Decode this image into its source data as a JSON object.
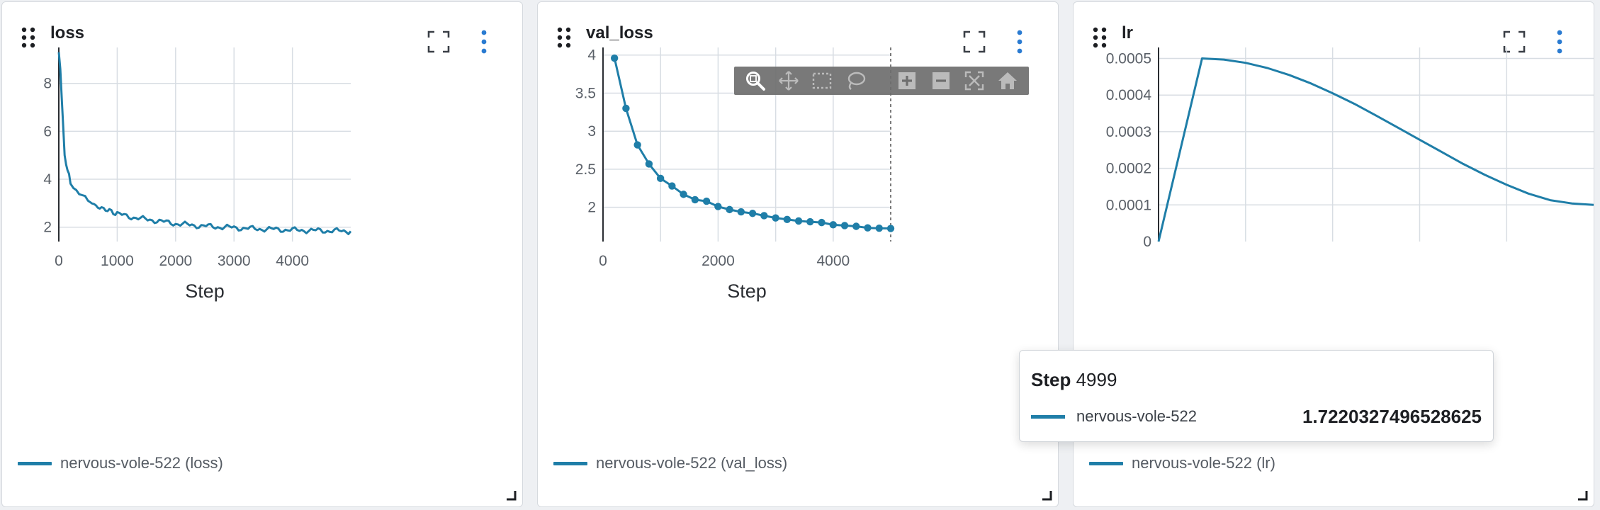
{
  "colors": {
    "series": "#1f7ea8",
    "grid": "#d8dde3",
    "axis": "#2a2d32",
    "accent": "#2a7bd1"
  },
  "panels": [
    {
      "title": "loss",
      "legend": "nervous-vole-522 (loss)"
    },
    {
      "title": "val_loss",
      "legend": "nervous-vole-522 (val_loss)"
    },
    {
      "title": "lr",
      "legend": "nervous-vole-522 (lr)"
    }
  ],
  "toolbar": {
    "buttons": [
      "zoom-icon",
      "pan-icon",
      "box-select-icon",
      "lasso-select-icon",
      "zoom-in-icon",
      "zoom-out-icon",
      "autoscale-icon",
      "reset-axes-icon"
    ]
  },
  "tooltip": {
    "step_label": "Step",
    "step_value": "4999",
    "series_name": "nervous-vole-522",
    "value": "1.7220327496528625"
  },
  "chart_data": [
    {
      "type": "line",
      "title": "loss",
      "xlabel": "Step",
      "ylabel": "",
      "xlim": [
        0,
        4999
      ],
      "ylim": [
        1.4,
        9.5
      ],
      "xticks": [
        0,
        1000,
        2000,
        3000,
        4000
      ],
      "yticks": [
        2,
        4,
        6,
        8
      ],
      "grid": true,
      "legend": "bottom-left",
      "series": [
        {
          "name": "nervous-vole-522 (loss)",
          "x": [
            0,
            25,
            50,
            75,
            100,
            125,
            150,
            175,
            200,
            250,
            300,
            350,
            400,
            450,
            500,
            600,
            700,
            800,
            900,
            1000,
            1200,
            1400,
            1600,
            1800,
            2000,
            2200,
            2400,
            2600,
            2800,
            3000,
            3200,
            3400,
            3600,
            3800,
            4000,
            4200,
            4400,
            4600,
            4800,
            4999
          ],
          "y": [
            9.3,
            8.6,
            7.4,
            6.2,
            5.0,
            4.6,
            4.3,
            4.2,
            3.9,
            3.7,
            3.55,
            3.45,
            3.3,
            3.2,
            3.1,
            2.95,
            2.8,
            2.75,
            2.65,
            2.55,
            2.45,
            2.35,
            2.3,
            2.22,
            2.15,
            2.1,
            2.06,
            2.03,
            2.0,
            1.98,
            1.95,
            1.93,
            1.92,
            1.9,
            1.88,
            1.87,
            1.86,
            1.85,
            1.84,
            1.83
          ]
        }
      ]
    },
    {
      "type": "line",
      "title": "val_loss",
      "xlabel": "Step",
      "ylabel": "",
      "xlim": [
        0,
        4999
      ],
      "ylim": [
        1.55,
        4.1
      ],
      "xticks": [
        0,
        2000,
        4000
      ],
      "yticks": [
        2,
        2.5,
        3,
        3.5,
        4
      ],
      "grid": true,
      "legend": "bottom-left",
      "hover_x": 4999,
      "series": [
        {
          "name": "nervous-vole-522 (val_loss)",
          "x": [
            199,
            399,
            599,
            799,
            999,
            1199,
            1399,
            1599,
            1799,
            1999,
            2199,
            2399,
            2599,
            2799,
            2999,
            3199,
            3399,
            3599,
            3799,
            3999,
            4199,
            4399,
            4599,
            4799,
            4999
          ],
          "y": [
            3.96,
            3.3,
            2.82,
            2.57,
            2.38,
            2.28,
            2.17,
            2.1,
            2.08,
            2.01,
            1.97,
            1.94,
            1.92,
            1.89,
            1.86,
            1.84,
            1.82,
            1.81,
            1.8,
            1.77,
            1.76,
            1.75,
            1.73,
            1.725,
            1.722
          ]
        }
      ]
    },
    {
      "type": "line",
      "title": "lr",
      "xlabel": "",
      "ylabel": "",
      "xlim": [
        0,
        4999
      ],
      "ylim": [
        0,
        0.00053
      ],
      "xticks": [],
      "yticks": [
        0,
        0.0001,
        0.0002,
        0.0003,
        0.0004,
        0.0005
      ],
      "ytick_labels": [
        "0",
        "0.0001",
        "0.0002",
        "0.0003",
        "0.0004",
        "0.0005"
      ],
      "grid": true,
      "legend": "bottom-left",
      "series": [
        {
          "name": "nervous-vole-522 (lr)",
          "x": [
            0,
            500,
            750,
            1000,
            1250,
            1500,
            1750,
            2000,
            2250,
            2500,
            2750,
            3000,
            3250,
            3500,
            3750,
            4000,
            4250,
            4500,
            4750,
            4999
          ],
          "y": [
            0,
            0.0005,
            0.000497,
            0.000488,
            0.000474,
            0.000455,
            0.000432,
            0.000405,
            0.000376,
            0.000344,
            0.000311,
            0.000278,
            0.000245,
            0.000212,
            0.000182,
            0.000155,
            0.000131,
            0.000113,
            0.000104,
            0.0001
          ]
        }
      ]
    }
  ]
}
